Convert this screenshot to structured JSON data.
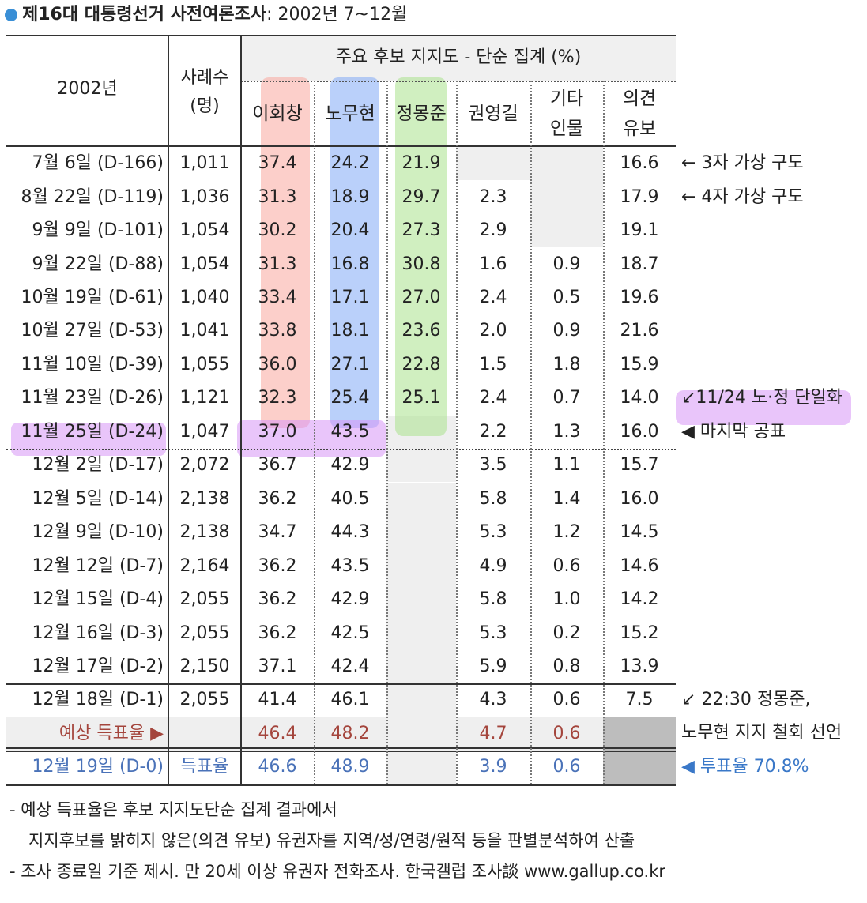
{
  "title": {
    "main": "제16대 대통령선거 사전여론조사",
    "period": ": 2002년 7~12월"
  },
  "table": {
    "header": {
      "period": "2002년",
      "sample": [
        "사례수",
        "(명)"
      ],
      "group": "주요 후보 지지도 - 단순 집계 (%)",
      "columns": [
        [
          "이회창"
        ],
        [
          "노무현"
        ],
        [
          "정몽준"
        ],
        [
          "권영길"
        ],
        [
          "기타",
          "인물"
        ],
        [
          "의견",
          "유보"
        ]
      ]
    },
    "rows": [
      {
        "date": "7월 6일 (D-166)",
        "n": "1,011",
        "values": [
          "37.4",
          "24.2",
          "21.9",
          null,
          null,
          "16.6"
        ],
        "note": [
          "← 3자 가상 구도"
        ]
      },
      {
        "date": "8월 22일 (D-119)",
        "n": "1,036",
        "values": [
          "31.3",
          "18.9",
          "29.7",
          "2.3",
          null,
          "17.9"
        ],
        "note": [
          "← 4자 가상 구도"
        ]
      },
      {
        "date": "9월 9일 (D-101)",
        "n": "1,054",
        "values": [
          "30.2",
          "20.4",
          "27.3",
          "2.9",
          null,
          "19.1"
        ]
      },
      {
        "date": "9월 22일 (D-88)",
        "n": "1,054",
        "values": [
          "31.3",
          "16.8",
          "30.8",
          "1.6",
          "0.9",
          "18.7"
        ]
      },
      {
        "date": "10월 19일 (D-61)",
        "n": "1,040",
        "values": [
          "33.4",
          "17.1",
          "27.0",
          "2.4",
          "0.5",
          "19.6"
        ]
      },
      {
        "date": "10월 27일 (D-53)",
        "n": "1,041",
        "values": [
          "33.8",
          "18.1",
          "23.6",
          "2.0",
          "0.9",
          "21.6"
        ]
      },
      {
        "date": "11월 10일 (D-39)",
        "n": "1,055",
        "values": [
          "36.0",
          "27.1",
          "22.8",
          "1.5",
          "1.8",
          "15.9"
        ]
      },
      {
        "date": "11월 23일 (D-26)",
        "n": "1,121",
        "values": [
          "32.3",
          "25.4",
          "25.1",
          "2.4",
          "0.7",
          "14.0"
        ],
        "note": [
          "↙11/24 노·정 단일화"
        ]
      },
      {
        "date": "11월 25일 (D-24)",
        "n": "1,047",
        "values": [
          "37.0",
          "43.5",
          null,
          "2.2",
          "1.3",
          "16.0"
        ],
        "note": [
          "◀ 마지막 공표"
        ]
      },
      {
        "date": "12월 2일 (D-17)",
        "n": "2,072",
        "values": [
          "36.7",
          "42.9",
          null,
          "3.5",
          "1.1",
          "15.7"
        ]
      },
      {
        "date": "12월 5일 (D-14)",
        "n": "2,138",
        "values": [
          "36.2",
          "40.5",
          null,
          "5.8",
          "1.4",
          "16.0"
        ]
      },
      {
        "date": "12월 9일 (D-10)",
        "n": "2,138",
        "values": [
          "34.7",
          "44.3",
          null,
          "5.3",
          "1.2",
          "14.5"
        ]
      },
      {
        "date": "12월 12일 (D-7)",
        "n": "2,164",
        "values": [
          "36.2",
          "43.5",
          null,
          "4.9",
          "0.6",
          "14.6"
        ]
      },
      {
        "date": "12월 15일 (D-4)",
        "n": "2,055",
        "values": [
          "36.2",
          "42.9",
          null,
          "5.8",
          "1.0",
          "14.2"
        ]
      },
      {
        "date": "12월 16일 (D-3)",
        "n": "2,055",
        "values": [
          "36.2",
          "42.5",
          null,
          "5.3",
          "0.2",
          "15.2"
        ]
      },
      {
        "date": "12월 17일 (D-2)",
        "n": "2,150",
        "values": [
          "37.1",
          "42.4",
          null,
          "5.9",
          "0.8",
          "13.9"
        ]
      },
      {
        "date": "12월 18일 (D-1)",
        "n": "2,055",
        "values": [
          "41.4",
          "46.1",
          null,
          "4.3",
          "0.6",
          "7.5"
        ],
        "note": [
          "↙ 22:30 정몽준,",
          "노무현 지지 철회 선언"
        ]
      },
      {
        "date": "예상 득표율 ▶",
        "n": null,
        "values": [
          "46.4",
          "48.2",
          null,
          "4.7",
          "0.6",
          null
        ]
      },
      {
        "date": "12월 19일 (D-0)",
        "n": "득표율",
        "values": [
          "46.6",
          "48.9",
          null,
          "3.9",
          "0.6",
          null
        ],
        "note": [
          "◀ 투표율 70.8%"
        ]
      }
    ]
  },
  "footnotes": [
    "- 예상 득표율은 후보 지지도단순 집계 결과에서",
    "지지후보를 밝히지 않은(의견 유보) 유권자를 지역/성/연령/원적 등을 판별분석하여 산출",
    "- 조사 종료일 기준 제시. 만 20세 이상 유권자 전화조사. 한국갤럽 조사談 www.gallup.co.kr"
  ]
}
